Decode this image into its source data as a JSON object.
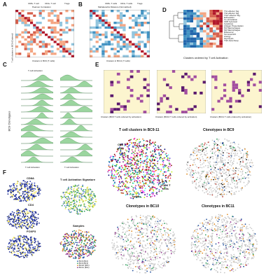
{
  "panels": {
    "A": {
      "letter": "A",
      "top_labels": [
        "CD8+ T cell",
        "CD4+ T cell",
        "Tregs"
      ],
      "title": "Pearson Correlation",
      "ylabel": "T cell clusters in BC9 (Ordered)",
      "xlabel": "Clusters in BC9 (T cells)"
    },
    "B": {
      "letter": "B",
      "top_labels": [
        "CD8+ T cells",
        "CD4+ T cells",
        "Tregs"
      ],
      "title": "Mahalanobis Distance (Normalized)",
      "xlabel": "Clusters in BC11 (T cells)"
    },
    "C": {
      "letter": "C",
      "title": "T cell Activation",
      "ylabel": "BC9 Clonotypes",
      "xlabel_left": "T cell Activation",
      "xlabel_right": "T cell Activation"
    },
    "D": {
      "letter": "D",
      "xlabel": "Clusters ordered by T cell Activation",
      "gene_labels": [
        "Th1 effector Sig.",
        "Th2 effector Sig.",
        "Th17 effector Sig.",
        "Exhaustion",
        "Co-stimulation",
        "CD8 Cytotoxic",
        "Cytokines",
        "Antigen Presentation",
        "M1 Macrophages",
        "M2 Macrophages",
        "Ribosome",
        "Terminal Diff.",
        "Anergy",
        "Glycolysis",
        "TGF-beta Resp."
      ]
    },
    "E": {
      "letter": "E",
      "xlabels": [
        "Clusters (BC9 T cells ordered by activation)",
        "Clusters (BC10 T cells ordered by activation)",
        "Clusters (BC11 T cells ordered by activation)"
      ],
      "scatter_titles": [
        "T cell clusters in BC9-11",
        "Clonotypes in BC9",
        "Clonotypes in BC10",
        "Clonotypes in BC11"
      ],
      "annotations": [
        "CD8 T cells",
        "CD4 T cells",
        "Tregs"
      ]
    },
    "F": {
      "letter": "F",
      "titles": [
        "CD8A",
        "CD4",
        "FOXP3",
        "T cell Activation Signature",
        "Samples"
      ],
      "sample_legend": [
        "BC9 (Br2)",
        "BC9 (Br3)",
        "BC10 (Br1)",
        "BC11 (Br1)"
      ]
    }
  },
  "colors": {
    "blue": "#2b5aa8",
    "red": "#c0392b",
    "green": "#2e9e5b",
    "purple": "#8e2a8a",
    "cream": "#fcf5cf",
    "yellow": "#f2e34b",
    "grey": "#c8c8c8"
  }
}
